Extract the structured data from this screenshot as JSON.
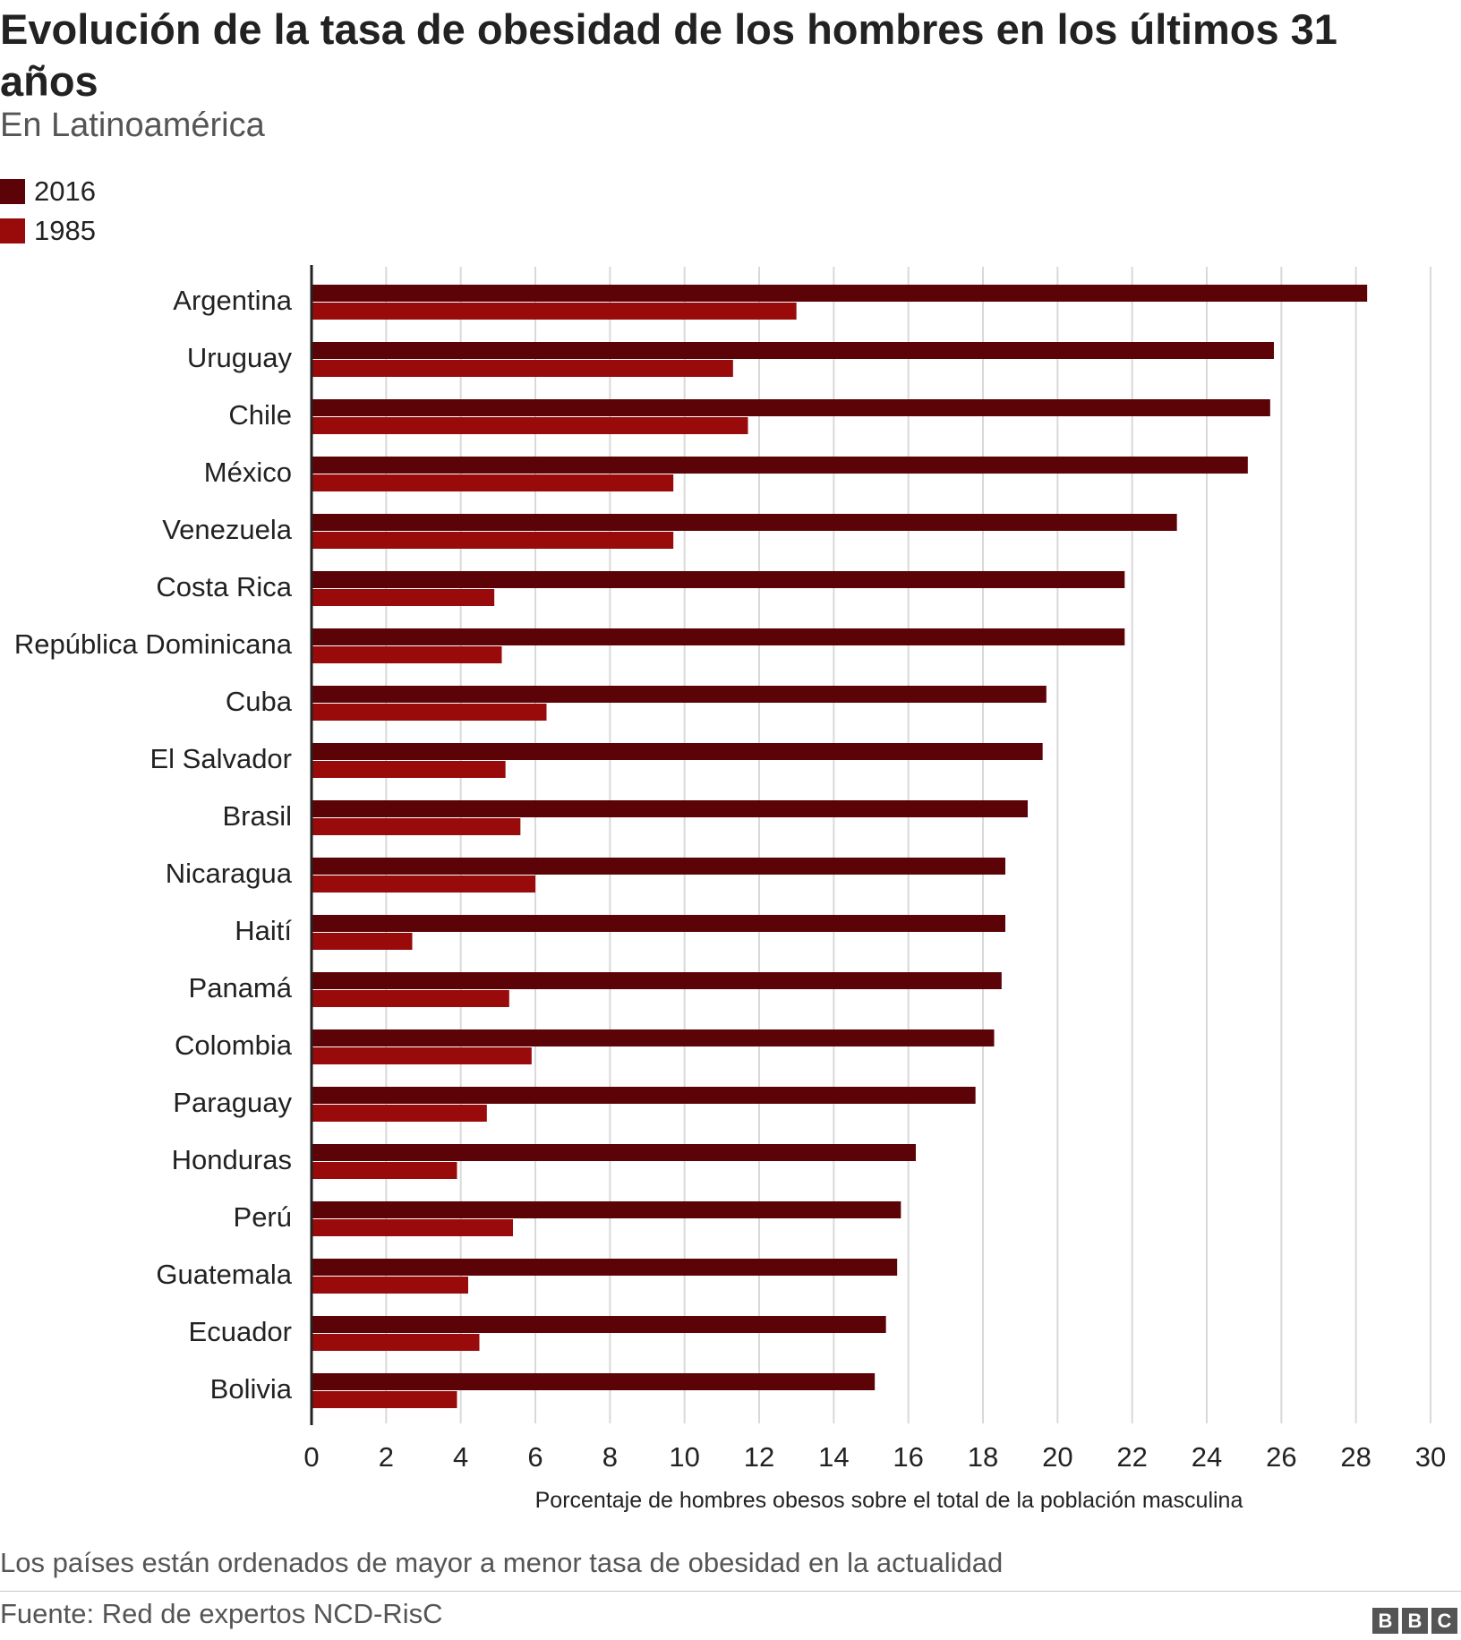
{
  "colors": {
    "series_2016": "#5c0307",
    "series_1985": "#990b0b",
    "grid": "#d9d9d9",
    "axis": "#222222",
    "logo": "#555555"
  },
  "header": {
    "title": "Evolución de la tasa de obesidad de los hombres en los últimos 31 años",
    "subtitle": "En Latinoamérica"
  },
  "legend": [
    {
      "label": "2016",
      "color": "#5c0307"
    },
    {
      "label": "1985",
      "color": "#990b0b"
    }
  ],
  "chart_data": {
    "type": "bar",
    "orientation": "horizontal",
    "title": "Evolución de la tasa de obesidad de los hombres en los últimos 31 años",
    "subtitle": "En Latinoamérica",
    "xlabel": "Porcentaje de hombres obesos sobre el total de la población masculina",
    "ylabel": "",
    "xlim": [
      0,
      30
    ],
    "xticks": [
      0,
      2,
      4,
      6,
      8,
      10,
      12,
      14,
      16,
      18,
      20,
      22,
      24,
      26,
      28,
      30
    ],
    "grid": true,
    "legend_position": "top-left",
    "categories": [
      "Argentina",
      "Uruguay",
      "Chile",
      "México",
      "Venezuela",
      "Costa Rica",
      "República Dominicana",
      "Cuba",
      "El Salvador",
      "Brasil",
      "Nicaragua",
      "Haití",
      "Panamá",
      "Colombia",
      "Paraguay",
      "Honduras",
      "Perú",
      "Guatemala",
      "Ecuador",
      "Bolivia"
    ],
    "series": [
      {
        "name": "2016",
        "values": [
          28.3,
          25.8,
          25.7,
          25.1,
          23.2,
          21.8,
          21.8,
          19.7,
          19.6,
          19.2,
          18.6,
          18.6,
          18.5,
          18.3,
          17.8,
          16.2,
          15.8,
          15.7,
          15.4,
          15.1
        ]
      },
      {
        "name": "1985",
        "values": [
          13.0,
          11.3,
          11.7,
          9.7,
          9.7,
          4.9,
          5.1,
          6.3,
          5.2,
          5.6,
          6.0,
          2.7,
          5.3,
          5.9,
          4.7,
          3.9,
          5.4,
          4.2,
          4.5,
          3.9
        ]
      }
    ]
  },
  "footer": {
    "note": "Los países están ordenados de mayor a menor tasa de obesidad en la actualidad",
    "source": "Fuente: Red de expertos NCD-RisC",
    "logo_letters": [
      "B",
      "B",
      "C"
    ]
  }
}
